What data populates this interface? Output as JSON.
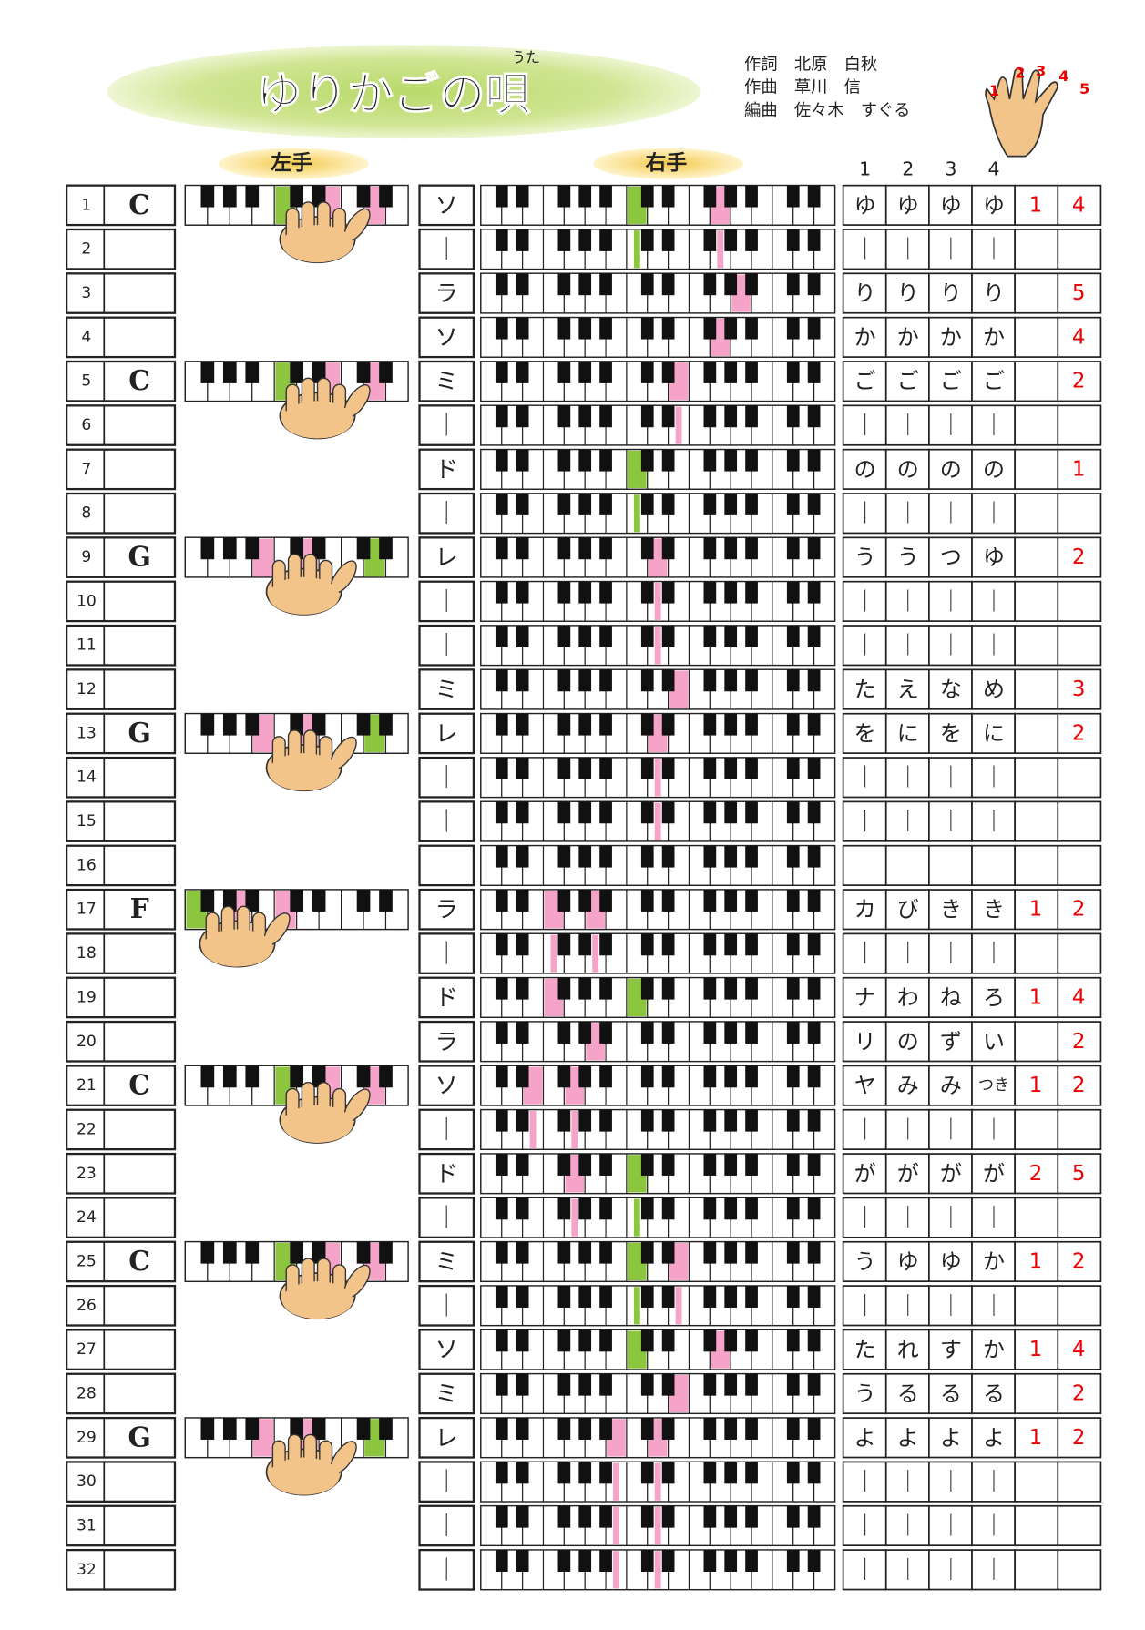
{
  "header": {
    "title": "ゆりかごの唄",
    "ruby": "うた",
    "credits": [
      "作詞　北原　白秋",
      "作曲　草川　信",
      "編曲　佐々木　すぐる"
    ],
    "finger_numbers": [
      1,
      2,
      3,
      4,
      5
    ]
  },
  "labels": {
    "left_hand": "左手",
    "right_hand": "右手",
    "beats": [
      1,
      2,
      3,
      4
    ]
  },
  "rows": [
    {
      "no": 1,
      "chord": "C",
      "note": "ソ",
      "lyrics": [
        "ゆ",
        "ゆ",
        "ゆ",
        "ゆ"
      ],
      "fingers": [
        "1",
        "4"
      ]
    },
    {
      "no": 2,
      "note": "｜",
      "lyrics": [
        "｜",
        "｜",
        "｜",
        "｜"
      ]
    },
    {
      "no": 3,
      "note": "ラ",
      "lyrics": [
        "り",
        "り",
        "り",
        "り"
      ],
      "fingers": [
        null,
        "5"
      ]
    },
    {
      "no": 4,
      "note": "ソ",
      "lyrics": [
        "か",
        "か",
        "か",
        "か"
      ],
      "fingers": [
        null,
        "4"
      ]
    },
    {
      "no": 5,
      "chord": "C",
      "note": "ミ",
      "lyrics": [
        "ご",
        "ご",
        "ご",
        "ご"
      ],
      "fingers": [
        null,
        "2"
      ]
    },
    {
      "no": 6,
      "note": "｜",
      "lyrics": [
        "｜",
        "｜",
        "｜",
        "｜"
      ]
    },
    {
      "no": 7,
      "note": "ド",
      "lyrics": [
        "の",
        "の",
        "の",
        "の"
      ],
      "fingers": [
        null,
        "1"
      ]
    },
    {
      "no": 8,
      "note": "｜",
      "lyrics": [
        "｜",
        "｜",
        "｜",
        "｜"
      ]
    },
    {
      "no": 9,
      "chord": "G",
      "note": "レ",
      "lyrics": [
        "う",
        "う",
        "つ",
        "ゆ"
      ],
      "fingers": [
        null,
        "2"
      ]
    },
    {
      "no": 10,
      "note": "｜",
      "lyrics": [
        "｜",
        "｜",
        "｜",
        "｜"
      ]
    },
    {
      "no": 11,
      "note": "｜",
      "lyrics": [
        "｜",
        "｜",
        "｜",
        "｜"
      ]
    },
    {
      "no": 12,
      "note": "ミ",
      "lyrics": [
        "た",
        "え",
        "な",
        "め"
      ],
      "fingers": [
        null,
        "3"
      ]
    },
    {
      "no": 13,
      "chord": "G",
      "note": "レ",
      "lyrics": [
        "を",
        "に",
        "を",
        "に"
      ],
      "fingers": [
        null,
        "2"
      ]
    },
    {
      "no": 14,
      "note": "｜",
      "lyrics": [
        "｜",
        "｜",
        "｜",
        "｜"
      ]
    },
    {
      "no": 15,
      "note": "｜",
      "lyrics": [
        "｜",
        "｜",
        "｜",
        "｜"
      ]
    },
    {
      "no": 16
    },
    {
      "no": 17,
      "chord": "F",
      "note": "ラ",
      "lyrics": [
        "カ",
        "び",
        "き",
        "き"
      ],
      "fingers": [
        "1",
        "2"
      ]
    },
    {
      "no": 18,
      "note": "｜",
      "lyrics": [
        "｜",
        "｜",
        "｜",
        "｜"
      ]
    },
    {
      "no": 19,
      "note": "ド",
      "lyrics": [
        "ナ",
        "わ",
        "ね",
        "ろ"
      ],
      "fingers": [
        "1",
        "4"
      ]
    },
    {
      "no": 20,
      "note": "ラ",
      "lyrics": [
        "リ",
        "の",
        "ず",
        "い"
      ],
      "fingers": [
        null,
        "2"
      ]
    },
    {
      "no": 21,
      "chord": "C",
      "note": "ソ",
      "lyrics": [
        "ヤ",
        "み",
        "み",
        "つき"
      ],
      "fingers": [
        "1",
        "2"
      ]
    },
    {
      "no": 22,
      "note": "｜",
      "lyrics": [
        "｜",
        "｜",
        "｜",
        "｜"
      ]
    },
    {
      "no": 23,
      "note": "ド",
      "lyrics": [
        "が",
        "が",
        "が",
        "が"
      ],
      "fingers": [
        "2",
        "5"
      ]
    },
    {
      "no": 24,
      "note": "｜",
      "lyrics": [
        "｜",
        "｜",
        "｜",
        "｜"
      ]
    },
    {
      "no": 25,
      "chord": "C",
      "note": "ミ",
      "lyrics": [
        "う",
        "ゆ",
        "ゆ",
        "か"
      ],
      "fingers": [
        "1",
        "2"
      ]
    },
    {
      "no": 26,
      "note": "｜",
      "lyrics": [
        "｜",
        "｜",
        "｜",
        "｜"
      ]
    },
    {
      "no": 27,
      "note": "ソ",
      "lyrics": [
        "た",
        "れ",
        "す",
        "か"
      ],
      "fingers": [
        "1",
        "4"
      ]
    },
    {
      "no": 28,
      "note": "ミ",
      "lyrics": [
        "う",
        "る",
        "る",
        "る"
      ],
      "fingers": [
        null,
        "2"
      ]
    },
    {
      "no": 29,
      "chord": "G",
      "note": "レ",
      "lyrics": [
        "よ",
        "よ",
        "よ",
        "よ"
      ],
      "fingers": [
        "1",
        "2"
      ]
    },
    {
      "no": 30,
      "note": "｜",
      "lyrics": [
        "｜",
        "｜",
        "｜",
        "｜"
      ]
    },
    {
      "no": 31,
      "note": "｜",
      "lyrics": [
        "｜",
        "｜",
        "｜",
        "｜"
      ]
    },
    {
      "no": 32,
      "note": "｜",
      "lyrics": [
        "｜",
        "｜",
        "｜",
        "｜"
      ]
    }
  ]
}
